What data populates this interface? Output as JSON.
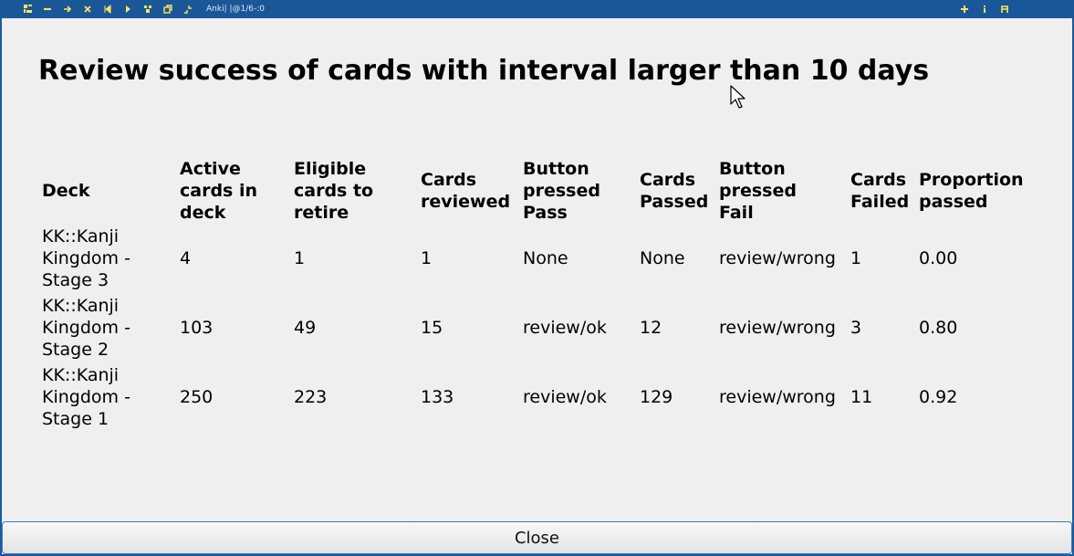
{
  "titlebar": {
    "title": "Anki| |@1/6-:0",
    "left_icons": [
      "menu-icon",
      "minimize-icon",
      "move-icon",
      "close-icon",
      "prev-icon",
      "next-icon",
      "filter-icon",
      "restore-icon",
      "resize-icon"
    ],
    "right_icons": [
      "plus-icon",
      "info-icon",
      "font-icon"
    ]
  },
  "heading": "Review success of cards with interval larger than 10 days",
  "table": {
    "headers": [
      [
        "Deck"
      ],
      [
        "Active",
        "cards in",
        "deck"
      ],
      [
        "Eligible",
        "cards to",
        "retire"
      ],
      [
        "Cards",
        "reviewed"
      ],
      [
        "Button",
        "pressed",
        "Pass"
      ],
      [
        "Cards",
        "Passed"
      ],
      [
        "Button",
        "pressed",
        "Fail"
      ],
      [
        "Cards",
        "Failed"
      ],
      [
        "Proportion",
        "passed"
      ]
    ],
    "rows": [
      {
        "deck": [
          "KK::Kanji",
          "Kingdom -",
          "Stage 3"
        ],
        "active": "4",
        "eligible": "1",
        "reviewed": "1",
        "pass_button": "None",
        "passed": "None",
        "fail_button": "review/wrong",
        "failed": "1",
        "proportion": "0.00"
      },
      {
        "deck": [
          "KK::Kanji",
          "Kingdom -",
          "Stage 2"
        ],
        "active": "103",
        "eligible": "49",
        "reviewed": "15",
        "pass_button": "review/ok",
        "passed": "12",
        "fail_button": "review/wrong",
        "failed": "3",
        "proportion": "0.80"
      },
      {
        "deck": [
          "KK::Kanji",
          "Kingdom -",
          "Stage 1"
        ],
        "active": "250",
        "eligible": "223",
        "reviewed": "133",
        "pass_button": "review/ok",
        "passed": "129",
        "fail_button": "review/wrong",
        "failed": "11",
        "proportion": "0.92"
      }
    ]
  },
  "close_label": "Close",
  "colors": {
    "titlebar": "#1a5799",
    "window_bg": "#efefef",
    "button_border": "#3b79c4",
    "icon_yellow": "#ffe55a"
  }
}
